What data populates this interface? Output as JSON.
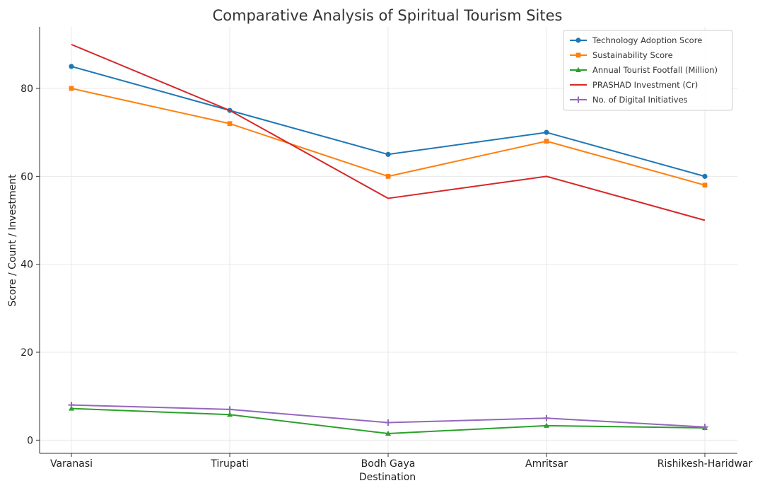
{
  "chart_data": {
    "type": "line",
    "title": "Comparative Analysis of Spiritual Tourism Sites",
    "xlabel": "Destination",
    "ylabel": "Score / Count / Investment",
    "categories": [
      "Varanasi",
      "Tirupati",
      "Bodh Gaya",
      "Amritsar",
      "Rishikesh-Haridwar"
    ],
    "ylim": [
      -3,
      94
    ],
    "yticks": [
      0,
      20,
      40,
      60,
      80
    ],
    "grid": true,
    "legend_position": "top-right",
    "series": [
      {
        "name": "Technology Adoption Score",
        "values": [
          85,
          75,
          65,
          70,
          60
        ],
        "color": "#1f77b4",
        "marker": "circle"
      },
      {
        "name": "Sustainability Score",
        "values": [
          80,
          72,
          60,
          68,
          58
        ],
        "color": "#ff7f0e",
        "marker": "square"
      },
      {
        "name": "Annual Tourist Footfall (Million)",
        "values": [
          7.2,
          5.8,
          1.5,
          3.3,
          2.8
        ],
        "color": "#2ca02c",
        "marker": "triangle"
      },
      {
        "name": "PRASHAD Investment (Cr)",
        "values": [
          90,
          75,
          55,
          60,
          50
        ],
        "color": "#d62728",
        "marker": "none"
      },
      {
        "name": "No. of Digital Initiatives",
        "values": [
          8,
          7,
          4,
          5,
          3
        ],
        "color": "#9467bd",
        "marker": "plus"
      }
    ]
  }
}
